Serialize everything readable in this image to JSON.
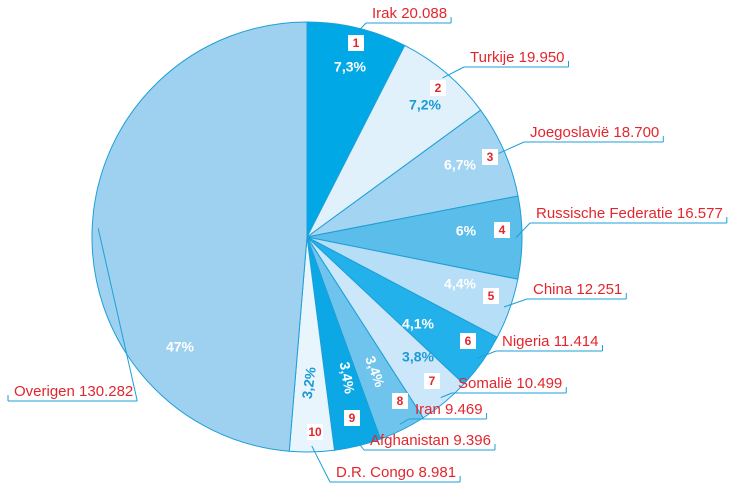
{
  "chart_data": {
    "type": "pie",
    "categories": [
      "Irak",
      "Turkije",
      "Joegoslavië",
      "Russische Federatie",
      "China",
      "Nigeria",
      "Somalië",
      "Iran",
      "Afghanistan",
      "D.R. Congo",
      "Overigen"
    ],
    "values": [
      20088,
      19950,
      18700,
      16577,
      12251,
      11414,
      10499,
      9469,
      9396,
      8981,
      130282
    ],
    "value_labels": [
      "20.088",
      "19.950",
      "18.700",
      "16.577",
      "12.251",
      "11.414",
      "10.499",
      "9.469",
      "9.396",
      "8.981",
      "130.282"
    ],
    "percents": [
      7.3,
      7.2,
      6.7,
      6,
      4.4,
      4.1,
      3.8,
      3.4,
      3.4,
      3.2,
      47
    ],
    "percent_labels": [
      "7,3%",
      "7,2%",
      "6,7%",
      "6%",
      "4,4%",
      "4,1%",
      "3,8%",
      "3,4%",
      "3,4%",
      "3,2%",
      "47%"
    ],
    "ranks": [
      1,
      2,
      3,
      4,
      5,
      6,
      7,
      8,
      9,
      10
    ],
    "colors": [
      "#00a9e6",
      "#e0f1fc",
      "#a3d5f2",
      "#5bbde9",
      "#b6def6",
      "#22b1ea",
      "#cbe7f9",
      "#6fc4ed",
      "#0ca8e5",
      "#e8f5fd",
      "#9ed1f0"
    ]
  }
}
